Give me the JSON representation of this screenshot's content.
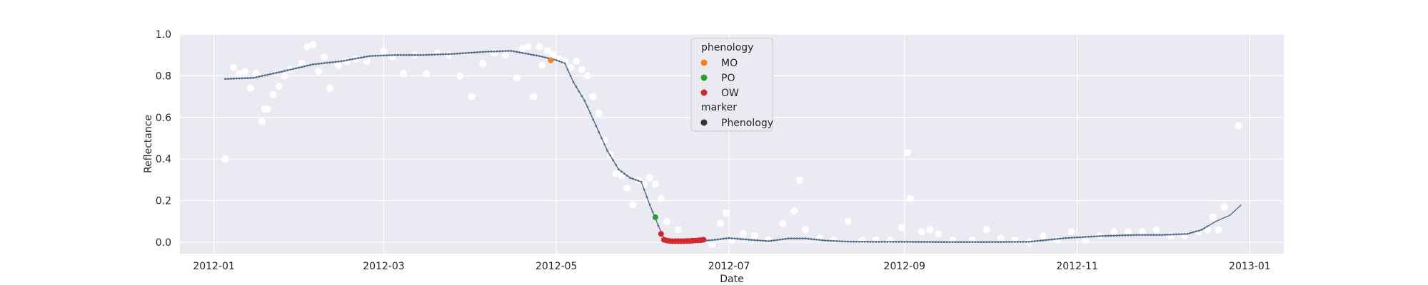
{
  "chart_data": {
    "type": "scatter",
    "xlabel": "Date",
    "ylabel": "Reflectance",
    "xlim": [
      "2011-12-20",
      "2013-01-13"
    ],
    "ylim": [
      -0.055,
      1.0
    ],
    "x_ticks": [
      "2012-01",
      "2012-03",
      "2012-05",
      "2012-07",
      "2012-09",
      "2012-11",
      "2013-01"
    ],
    "y_ticks": [
      "0.0",
      "0.2",
      "0.4",
      "0.6",
      "0.8",
      "1.0"
    ],
    "grid": true,
    "legend_placement": "top-center",
    "colors": {
      "background": "#EAEAF2",
      "grid": "#FFFFFF",
      "smoothed": "#4C6E8A",
      "raw": "#FFFFFF",
      "MO": "#FF7F0E",
      "PO": "#2CA02C",
      "OW": "#D62728",
      "marker": "#333333"
    },
    "legend": {
      "title_hue": "phenology",
      "hue_entries": [
        "MO",
        "PO",
        "OW"
      ],
      "title_style": "marker",
      "style_entries": [
        "Phenology"
      ]
    },
    "raw_observations": {
      "x": [
        "2012-01-05",
        "2012-01-08",
        "2012-01-10",
        "2012-01-12",
        "2012-01-14",
        "2012-01-16",
        "2012-01-18",
        "2012-01-19",
        "2012-01-20",
        "2012-01-22",
        "2012-01-24",
        "2012-01-26",
        "2012-01-28",
        "2012-02-01",
        "2012-02-03",
        "2012-02-05",
        "2012-02-07",
        "2012-02-09",
        "2012-02-11",
        "2012-02-14",
        "2012-02-17",
        "2012-02-20",
        "2012-02-24",
        "2012-03-01",
        "2012-03-04",
        "2012-03-08",
        "2012-03-12",
        "2012-03-16",
        "2012-03-20",
        "2012-03-24",
        "2012-03-28",
        "2012-04-01",
        "2012-04-05",
        "2012-04-09",
        "2012-04-13",
        "2012-04-17",
        "2012-04-19",
        "2012-04-21",
        "2012-04-23",
        "2012-04-25",
        "2012-04-26",
        "2012-04-28",
        "2012-04-30",
        "2012-05-02",
        "2012-05-04",
        "2012-05-06",
        "2012-05-08",
        "2012-05-10",
        "2012-05-12",
        "2012-05-14",
        "2012-05-16",
        "2012-05-18",
        "2012-05-20",
        "2012-05-22",
        "2012-05-24",
        "2012-05-26",
        "2012-05-28",
        "2012-05-30",
        "2012-06-01",
        "2012-06-03",
        "2012-06-05",
        "2012-06-07",
        "2012-06-09",
        "2012-06-13",
        "2012-06-19",
        "2012-06-25",
        "2012-06-28",
        "2012-06-30",
        "2012-07-02",
        "2012-07-06",
        "2012-07-10",
        "2012-07-15",
        "2012-07-20",
        "2012-07-24",
        "2012-07-26",
        "2012-07-28",
        "2012-08-02",
        "2012-08-07",
        "2012-08-12",
        "2012-08-17",
        "2012-08-22",
        "2012-08-27",
        "2012-08-31",
        "2012-09-02",
        "2012-09-03",
        "2012-09-07",
        "2012-09-10",
        "2012-09-13",
        "2012-09-18",
        "2012-09-25",
        "2012-09-30",
        "2012-10-05",
        "2012-10-10",
        "2012-10-15",
        "2012-10-20",
        "2012-10-25",
        "2012-10-30",
        "2012-11-04",
        "2012-11-09",
        "2012-11-14",
        "2012-11-19",
        "2012-11-24",
        "2012-11-29",
        "2012-12-04",
        "2012-12-09",
        "2012-12-14",
        "2012-12-17",
        "2012-12-19",
        "2012-12-21",
        "2012-12-23",
        "2012-12-28"
      ],
      "y": [
        0.4,
        0.84,
        0.81,
        0.82,
        0.74,
        0.81,
        0.58,
        0.64,
        0.64,
        0.71,
        0.75,
        0.8,
        0.83,
        0.86,
        0.94,
        0.95,
        0.82,
        0.89,
        0.74,
        0.85,
        0.87,
        0.88,
        0.87,
        0.92,
        0.89,
        0.81,
        0.9,
        0.81,
        0.91,
        0.9,
        0.8,
        0.7,
        0.86,
        0.91,
        0.9,
        0.79,
        0.93,
        0.94,
        0.7,
        0.94,
        0.85,
        0.92,
        0.9,
        0.88,
        0.87,
        0.84,
        0.87,
        0.83,
        0.8,
        0.7,
        0.62,
        0.49,
        0.42,
        0.33,
        0.32,
        0.26,
        0.18,
        0.3,
        0.28,
        0.31,
        0.28,
        0.21,
        0.1,
        0.06,
        0.01,
        -0.01,
        0.09,
        0.14,
        0.01,
        0.04,
        0.03,
        0.01,
        0.09,
        0.15,
        0.3,
        0.06,
        0.02,
        0.01,
        0.1,
        0.01,
        0.01,
        0.01,
        0.07,
        0.43,
        0.21,
        0.05,
        0.06,
        0.04,
        0.01,
        0.01,
        0.06,
        0.02,
        0.01,
        0.0,
        0.03,
        0.01,
        0.05,
        0.01,
        0.03,
        0.05,
        0.05,
        0.05,
        0.06,
        0.03,
        0.03,
        0.05,
        0.06,
        0.12,
        0.06,
        0.17,
        0.56
      ]
    },
    "smoothed_series": {
      "name": "",
      "x": [
        "2012-01-05",
        "2012-01-15",
        "2012-01-25",
        "2012-02-05",
        "2012-02-15",
        "2012-02-25",
        "2012-03-05",
        "2012-03-15",
        "2012-03-25",
        "2012-04-05",
        "2012-04-15",
        "2012-04-25",
        "2012-05-01",
        "2012-05-04",
        "2012-05-07",
        "2012-05-11",
        "2012-05-15",
        "2012-05-19",
        "2012-05-23",
        "2012-05-27",
        "2012-05-31",
        "2012-06-03",
        "2012-06-06",
        "2012-06-08",
        "2012-06-10",
        "2012-06-15",
        "2012-06-20",
        "2012-06-25",
        "2012-07-01",
        "2012-07-08",
        "2012-07-15",
        "2012-07-22",
        "2012-07-28",
        "2012-08-04",
        "2012-08-12",
        "2012-08-20",
        "2012-09-01",
        "2012-09-15",
        "2012-10-01",
        "2012-10-15",
        "2012-10-28",
        "2012-11-10",
        "2012-11-22",
        "2012-12-01",
        "2012-12-10",
        "2012-12-15",
        "2012-12-20",
        "2012-12-25",
        "2012-12-29"
      ],
      "y": [
        0.785,
        0.79,
        0.82,
        0.855,
        0.87,
        0.895,
        0.9,
        0.9,
        0.905,
        0.915,
        0.92,
        0.895,
        0.875,
        0.86,
        0.77,
        0.68,
        0.56,
        0.44,
        0.35,
        0.31,
        0.29,
        0.18,
        0.08,
        0.02,
        0.01,
        0.007,
        0.006,
        0.01,
        0.02,
        0.012,
        0.005,
        0.018,
        0.018,
        0.008,
        0.003,
        0.002,
        0.002,
        0.001,
        0.001,
        0.002,
        0.02,
        0.03,
        0.035,
        0.035,
        0.04,
        0.06,
        0.1,
        0.13,
        0.18
      ]
    },
    "phenology_points": [
      {
        "label": "MO",
        "x": "2012-04-29",
        "y": 0.875
      },
      {
        "label": "PO",
        "x": "2012-06-05",
        "y": 0.12
      },
      {
        "label": "OW",
        "x": [
          "2012-06-07",
          "2012-06-08",
          "2012-06-09",
          "2012-06-10",
          "2012-06-11",
          "2012-06-12",
          "2012-06-13",
          "2012-06-14",
          "2012-06-15",
          "2012-06-16",
          "2012-06-17",
          "2012-06-18",
          "2012-06-19",
          "2012-06-20",
          "2012-06-21",
          "2012-06-22"
        ],
        "y": [
          0.04,
          0.012,
          0.008,
          0.006,
          0.005,
          0.005,
          0.005,
          0.005,
          0.005,
          0.006,
          0.006,
          0.007,
          0.008,
          0.009,
          0.01,
          0.012
        ]
      }
    ]
  }
}
